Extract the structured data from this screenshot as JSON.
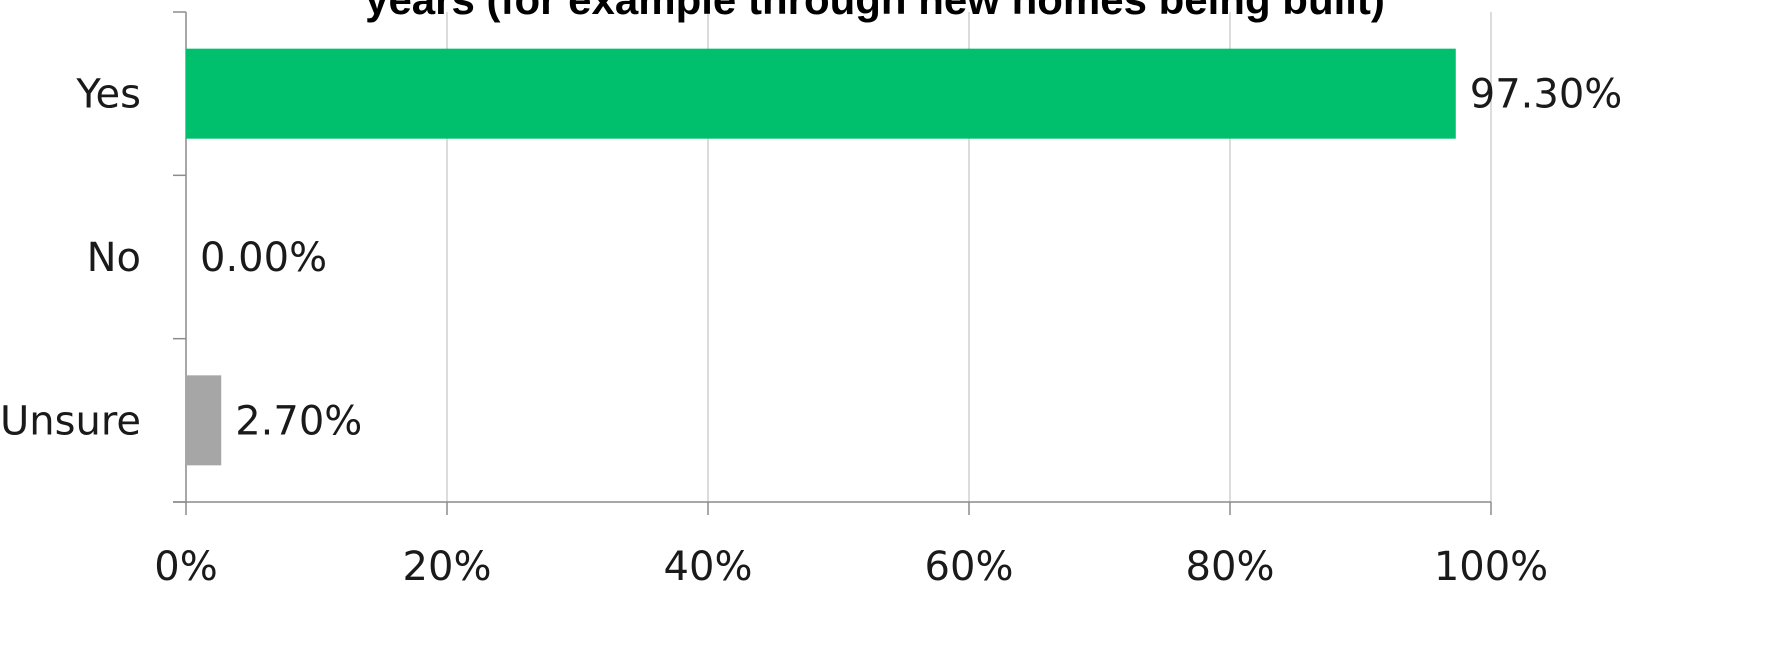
{
  "chart_data": {
    "type": "bar",
    "orientation": "horizontal",
    "title": "years (for example through new homes being built)",
    "categories": [
      "Yes",
      "No",
      "Unsure"
    ],
    "values": [
      97.3,
      0.0,
      2.7
    ],
    "data_labels": [
      "97.30%",
      "0.00%",
      "2.70%"
    ],
    "bar_colors": [
      "#00c06e",
      "#00c06e",
      "#a6a6a6"
    ],
    "xlim": [
      0,
      100
    ],
    "x_ticks": [
      0,
      20,
      40,
      60,
      80,
      100
    ],
    "x_tick_labels": [
      "0%",
      "20%",
      "40%",
      "60%",
      "80%",
      "100%"
    ],
    "xlabel": "",
    "ylabel": "",
    "grid": true,
    "legend": "none"
  }
}
